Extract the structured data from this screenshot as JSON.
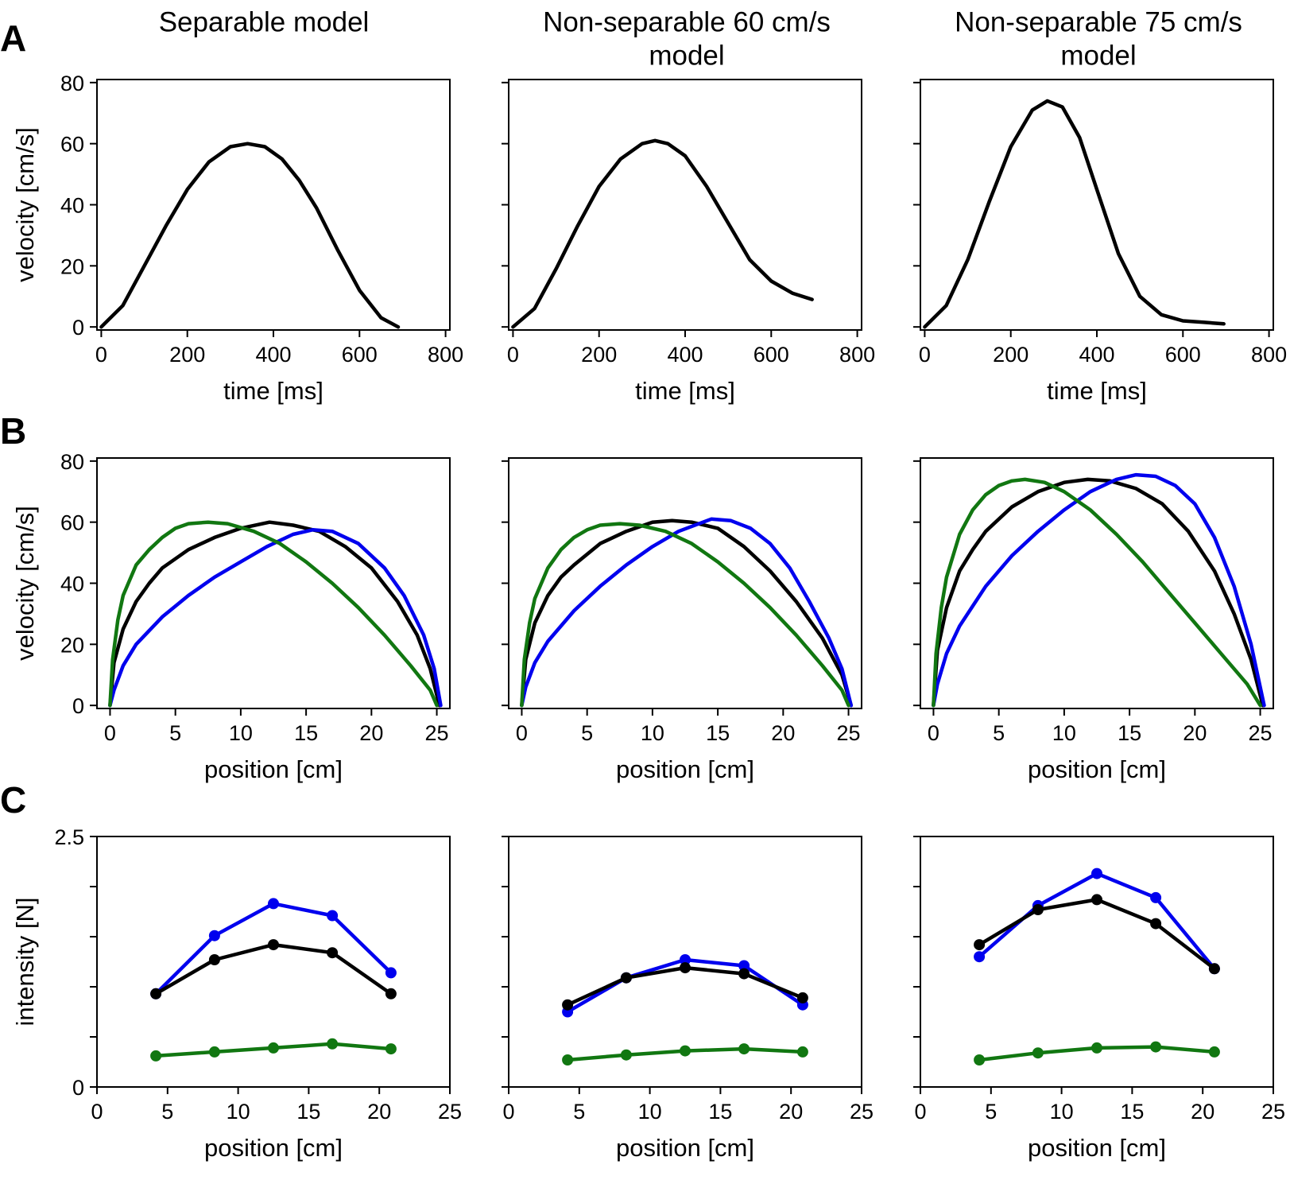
{
  "column_titles": [
    [
      "Separable model"
    ],
    [
      "Non-separable 60 cm/s",
      "model"
    ],
    [
      "Non-separable 75 cm/s",
      "model"
    ]
  ],
  "row_letters": [
    "A",
    "B",
    "C"
  ],
  "colors": {
    "black": "#000000",
    "blue": "#0000ee",
    "green": "#117711",
    "axis": "#000000"
  },
  "chart_data": [
    {
      "id": "A1",
      "row": 0,
      "col": 0,
      "type": "line",
      "xlabel": "time [ms]",
      "ylabel": "velocity [cm/s]",
      "xlim": [
        -10,
        810
      ],
      "ylim": [
        -1,
        81
      ],
      "xticks": [
        0,
        200,
        400,
        600,
        800
      ],
      "yticks": [
        0,
        20,
        40,
        60,
        80
      ],
      "show_xticklabels": true,
      "show_yticklabels": true,
      "series": [
        {
          "name": "velocity",
          "color": "black",
          "x": [
            0,
            50,
            100,
            150,
            200,
            250,
            300,
            340,
            380,
            420,
            460,
            500,
            550,
            600,
            650,
            690
          ],
          "y": [
            0,
            7,
            20,
            33,
            45,
            54,
            59,
            60,
            59,
            55,
            48,
            39,
            25,
            12,
            3,
            0
          ]
        }
      ]
    },
    {
      "id": "A2",
      "row": 0,
      "col": 1,
      "type": "line",
      "xlabel": "time [ms]",
      "ylabel": "",
      "xlim": [
        -10,
        810
      ],
      "ylim": [
        -1,
        81
      ],
      "xticks": [
        0,
        200,
        400,
        600,
        800
      ],
      "yticks": [
        0,
        20,
        40,
        60,
        80
      ],
      "show_xticklabels": true,
      "show_yticklabels": false,
      "series": [
        {
          "name": "velocity",
          "color": "black",
          "x": [
            0,
            50,
            100,
            150,
            200,
            250,
            300,
            330,
            360,
            400,
            450,
            500,
            550,
            600,
            650,
            695
          ],
          "y": [
            0,
            6,
            19,
            33,
            46,
            55,
            60,
            61,
            60,
            56,
            46,
            34,
            22,
            15,
            11,
            9
          ]
        }
      ]
    },
    {
      "id": "A3",
      "row": 0,
      "col": 2,
      "type": "line",
      "xlabel": "time [ms]",
      "ylabel": "",
      "xlim": [
        -10,
        810
      ],
      "ylim": [
        -1,
        81
      ],
      "xticks": [
        0,
        200,
        400,
        600,
        800
      ],
      "yticks": [
        0,
        20,
        40,
        60,
        80
      ],
      "show_xticklabels": true,
      "show_yticklabels": false,
      "series": [
        {
          "name": "velocity",
          "color": "black",
          "x": [
            0,
            50,
            100,
            150,
            200,
            250,
            285,
            320,
            360,
            400,
            450,
            500,
            550,
            600,
            650,
            695
          ],
          "y": [
            0,
            7,
            22,
            41,
            59,
            71,
            74,
            72,
            62,
            45,
            24,
            10,
            4,
            2,
            1.5,
            1
          ]
        }
      ]
    },
    {
      "id": "B1",
      "row": 1,
      "col": 0,
      "type": "line",
      "xlabel": "position [cm]",
      "ylabel": "velocity [cm/s]",
      "xlim": [
        -1,
        26
      ],
      "ylim": [
        -1,
        81
      ],
      "xticks": [
        0,
        5,
        10,
        15,
        20,
        25
      ],
      "yticks": [
        0,
        20,
        40,
        60,
        80
      ],
      "show_xticklabels": true,
      "show_yticklabels": true,
      "series": [
        {
          "name": "black",
          "color": "black",
          "x": [
            0,
            0.3,
            1,
            2,
            3,
            4,
            6,
            8,
            10,
            12.2,
            14,
            16,
            18,
            20,
            22,
            23.5,
            24.5,
            25.2
          ],
          "y": [
            0,
            14,
            25,
            34,
            40,
            45,
            51,
            55,
            58,
            60,
            59,
            57,
            52,
            45,
            34,
            23,
            12,
            0
          ]
        },
        {
          "name": "blue",
          "color": "blue",
          "x": [
            0,
            0.3,
            1,
            2,
            4,
            6,
            8,
            10,
            12,
            14,
            15.5,
            17,
            19,
            21,
            22.5,
            24,
            24.8,
            25.3
          ],
          "y": [
            0,
            5,
            13,
            20,
            29,
            36,
            42,
            47,
            52,
            56,
            57.5,
            57,
            53,
            45,
            36,
            23,
            12,
            0
          ]
        },
        {
          "name": "green",
          "color": "green",
          "x": [
            0,
            0.2,
            0.6,
            1,
            2,
            3,
            4,
            5,
            6,
            7.5,
            9,
            11,
            13,
            15,
            17,
            19,
            21,
            23,
            24.5,
            25
          ],
          "y": [
            0,
            15,
            28,
            36,
            46,
            51,
            55,
            58,
            59.5,
            60,
            59.5,
            57,
            53,
            47,
            40,
            32,
            23,
            13,
            5,
            0
          ]
        }
      ]
    },
    {
      "id": "B2",
      "row": 1,
      "col": 1,
      "type": "line",
      "xlabel": "position [cm]",
      "ylabel": "",
      "xlim": [
        -1,
        26
      ],
      "ylim": [
        -1,
        81
      ],
      "xticks": [
        0,
        5,
        10,
        15,
        20,
        25
      ],
      "yticks": [
        0,
        20,
        40,
        60,
        80
      ],
      "show_xticklabels": true,
      "show_yticklabels": false,
      "series": [
        {
          "name": "black",
          "color": "black",
          "x": [
            0,
            0.3,
            1,
            2,
            3,
            4,
            6,
            8,
            10,
            11.5,
            13,
            15,
            17,
            19,
            21,
            23,
            24.5,
            25.2
          ],
          "y": [
            0,
            15,
            27,
            36,
            42,
            46,
            53,
            57,
            60,
            60.5,
            60,
            58,
            52,
            44,
            34,
            22,
            10,
            0
          ]
        },
        {
          "name": "blue",
          "color": "blue",
          "x": [
            0,
            0.3,
            1,
            2,
            4,
            6,
            8,
            10,
            12,
            14.5,
            16,
            17.5,
            19,
            20.5,
            22,
            23.5,
            24.5,
            25.2
          ],
          "y": [
            0,
            6,
            14,
            21,
            31,
            39,
            46,
            52,
            57,
            61,
            60.5,
            58,
            53,
            45,
            34,
            22,
            12,
            0
          ]
        },
        {
          "name": "green",
          "color": "green",
          "x": [
            0,
            0.2,
            0.6,
            1,
            2,
            3,
            4,
            5,
            6,
            7.5,
            9,
            11,
            13,
            15,
            17,
            19,
            21,
            23,
            24.5,
            25
          ],
          "y": [
            0,
            15,
            27,
            35,
            45,
            51,
            55,
            57.5,
            59,
            59.5,
            59,
            57,
            53,
            47,
            40,
            32,
            23,
            13,
            5,
            0
          ]
        }
      ]
    },
    {
      "id": "B3",
      "row": 1,
      "col": 2,
      "type": "line",
      "xlabel": "position [cm]",
      "ylabel": "",
      "xlim": [
        -1,
        26
      ],
      "ylim": [
        -1,
        81
      ],
      "xticks": [
        0,
        5,
        10,
        15,
        20,
        25
      ],
      "yticks": [
        0,
        20,
        40,
        60,
        80
      ],
      "show_xticklabels": true,
      "show_yticklabels": false,
      "series": [
        {
          "name": "black",
          "color": "black",
          "x": [
            0,
            0.3,
            1,
            2,
            3,
            4,
            6,
            8,
            10,
            11.8,
            13.5,
            15.5,
            17.5,
            19.5,
            21.5,
            23,
            24.3,
            25.2
          ],
          "y": [
            0,
            18,
            32,
            44,
            51,
            57,
            65,
            70,
            73,
            74,
            73.5,
            71,
            66,
            57,
            44,
            30,
            15,
            0
          ]
        },
        {
          "name": "blue",
          "color": "blue",
          "x": [
            0,
            0.3,
            1,
            2,
            4,
            6,
            8,
            10,
            12,
            14,
            15.5,
            17,
            18.5,
            20,
            21.5,
            23,
            24.3,
            25.3
          ],
          "y": [
            0,
            7,
            17,
            26,
            39,
            49,
            57,
            64,
            70,
            74,
            75.5,
            75,
            72,
            66,
            55,
            39,
            20,
            0
          ]
        },
        {
          "name": "green",
          "color": "green",
          "x": [
            0,
            0.2,
            0.6,
            1,
            2,
            3,
            4,
            5,
            6,
            7,
            8.5,
            10,
            12,
            14,
            16,
            18,
            20,
            22,
            24,
            25
          ],
          "y": [
            0,
            17,
            32,
            42,
            56,
            64,
            69,
            72,
            73.5,
            74,
            73,
            70,
            64,
            56,
            47,
            37,
            27,
            17,
            7,
            0
          ]
        }
      ]
    },
    {
      "id": "C1",
      "row": 2,
      "col": 0,
      "type": "line",
      "xlabel": "position [cm]",
      "ylabel": "intensity [N]",
      "xlim": [
        0,
        25
      ],
      "ylim": [
        0,
        2.5
      ],
      "xticks": [
        0,
        5,
        10,
        15,
        20,
        25
      ],
      "yticks": [
        0,
        0.5,
        1.0,
        1.5,
        2.0,
        2.5
      ],
      "ytick_labels": [
        "0",
        "",
        "",
        "",
        "",
        "2.5"
      ],
      "show_xticklabels": true,
      "show_yticklabels": true,
      "markers": true,
      "series": [
        {
          "name": "blue",
          "color": "blue",
          "x": [
            4.17,
            8.33,
            12.5,
            16.67,
            20.83
          ],
          "y": [
            0.93,
            1.51,
            1.83,
            1.71,
            1.14
          ]
        },
        {
          "name": "black",
          "color": "black",
          "x": [
            4.17,
            8.33,
            12.5,
            16.67,
            20.83
          ],
          "y": [
            0.93,
            1.27,
            1.42,
            1.34,
            0.93
          ]
        },
        {
          "name": "green",
          "color": "green",
          "x": [
            4.17,
            8.33,
            12.5,
            16.67,
            20.83
          ],
          "y": [
            0.31,
            0.35,
            0.39,
            0.43,
            0.38
          ]
        }
      ]
    },
    {
      "id": "C2",
      "row": 2,
      "col": 1,
      "type": "line",
      "xlabel": "position [cm]",
      "ylabel": "",
      "xlim": [
        0,
        25
      ],
      "ylim": [
        0,
        2.5
      ],
      "xticks": [
        0,
        5,
        10,
        15,
        20,
        25
      ],
      "yticks": [
        0,
        0.5,
        1.0,
        1.5,
        2.0,
        2.5
      ],
      "ytick_labels": [
        "",
        "",
        "",
        "",
        "",
        ""
      ],
      "show_xticklabels": true,
      "show_yticklabels": false,
      "markers": true,
      "series": [
        {
          "name": "blue",
          "color": "blue",
          "x": [
            4.17,
            8.33,
            12.5,
            16.67,
            20.83
          ],
          "y": [
            0.75,
            1.09,
            1.27,
            1.21,
            0.82
          ]
        },
        {
          "name": "black",
          "color": "black",
          "x": [
            4.17,
            8.33,
            12.5,
            16.67,
            20.83
          ],
          "y": [
            0.82,
            1.09,
            1.19,
            1.13,
            0.89
          ]
        },
        {
          "name": "green",
          "color": "green",
          "x": [
            4.17,
            8.33,
            12.5,
            16.67,
            20.83
          ],
          "y": [
            0.27,
            0.32,
            0.36,
            0.38,
            0.35
          ]
        }
      ]
    },
    {
      "id": "C3",
      "row": 2,
      "col": 2,
      "type": "line",
      "xlabel": "position [cm]",
      "ylabel": "",
      "xlim": [
        0,
        25
      ],
      "ylim": [
        0,
        2.5
      ],
      "xticks": [
        0,
        5,
        10,
        15,
        20,
        25
      ],
      "yticks": [
        0,
        0.5,
        1.0,
        1.5,
        2.0,
        2.5
      ],
      "ytick_labels": [
        "",
        "",
        "",
        "",
        "",
        ""
      ],
      "show_xticklabels": true,
      "show_yticklabels": false,
      "markers": true,
      "series": [
        {
          "name": "blue",
          "color": "blue",
          "x": [
            4.17,
            8.33,
            12.5,
            16.67,
            20.83
          ],
          "y": [
            1.3,
            1.81,
            2.13,
            1.89,
            1.18
          ]
        },
        {
          "name": "black",
          "color": "black",
          "x": [
            4.17,
            8.33,
            12.5,
            16.67,
            20.83
          ],
          "y": [
            1.42,
            1.77,
            1.87,
            1.63,
            1.18
          ]
        },
        {
          "name": "green",
          "color": "green",
          "x": [
            4.17,
            8.33,
            12.5,
            16.67,
            20.83
          ],
          "y": [
            0.27,
            0.34,
            0.39,
            0.4,
            0.35
          ]
        }
      ]
    }
  ]
}
